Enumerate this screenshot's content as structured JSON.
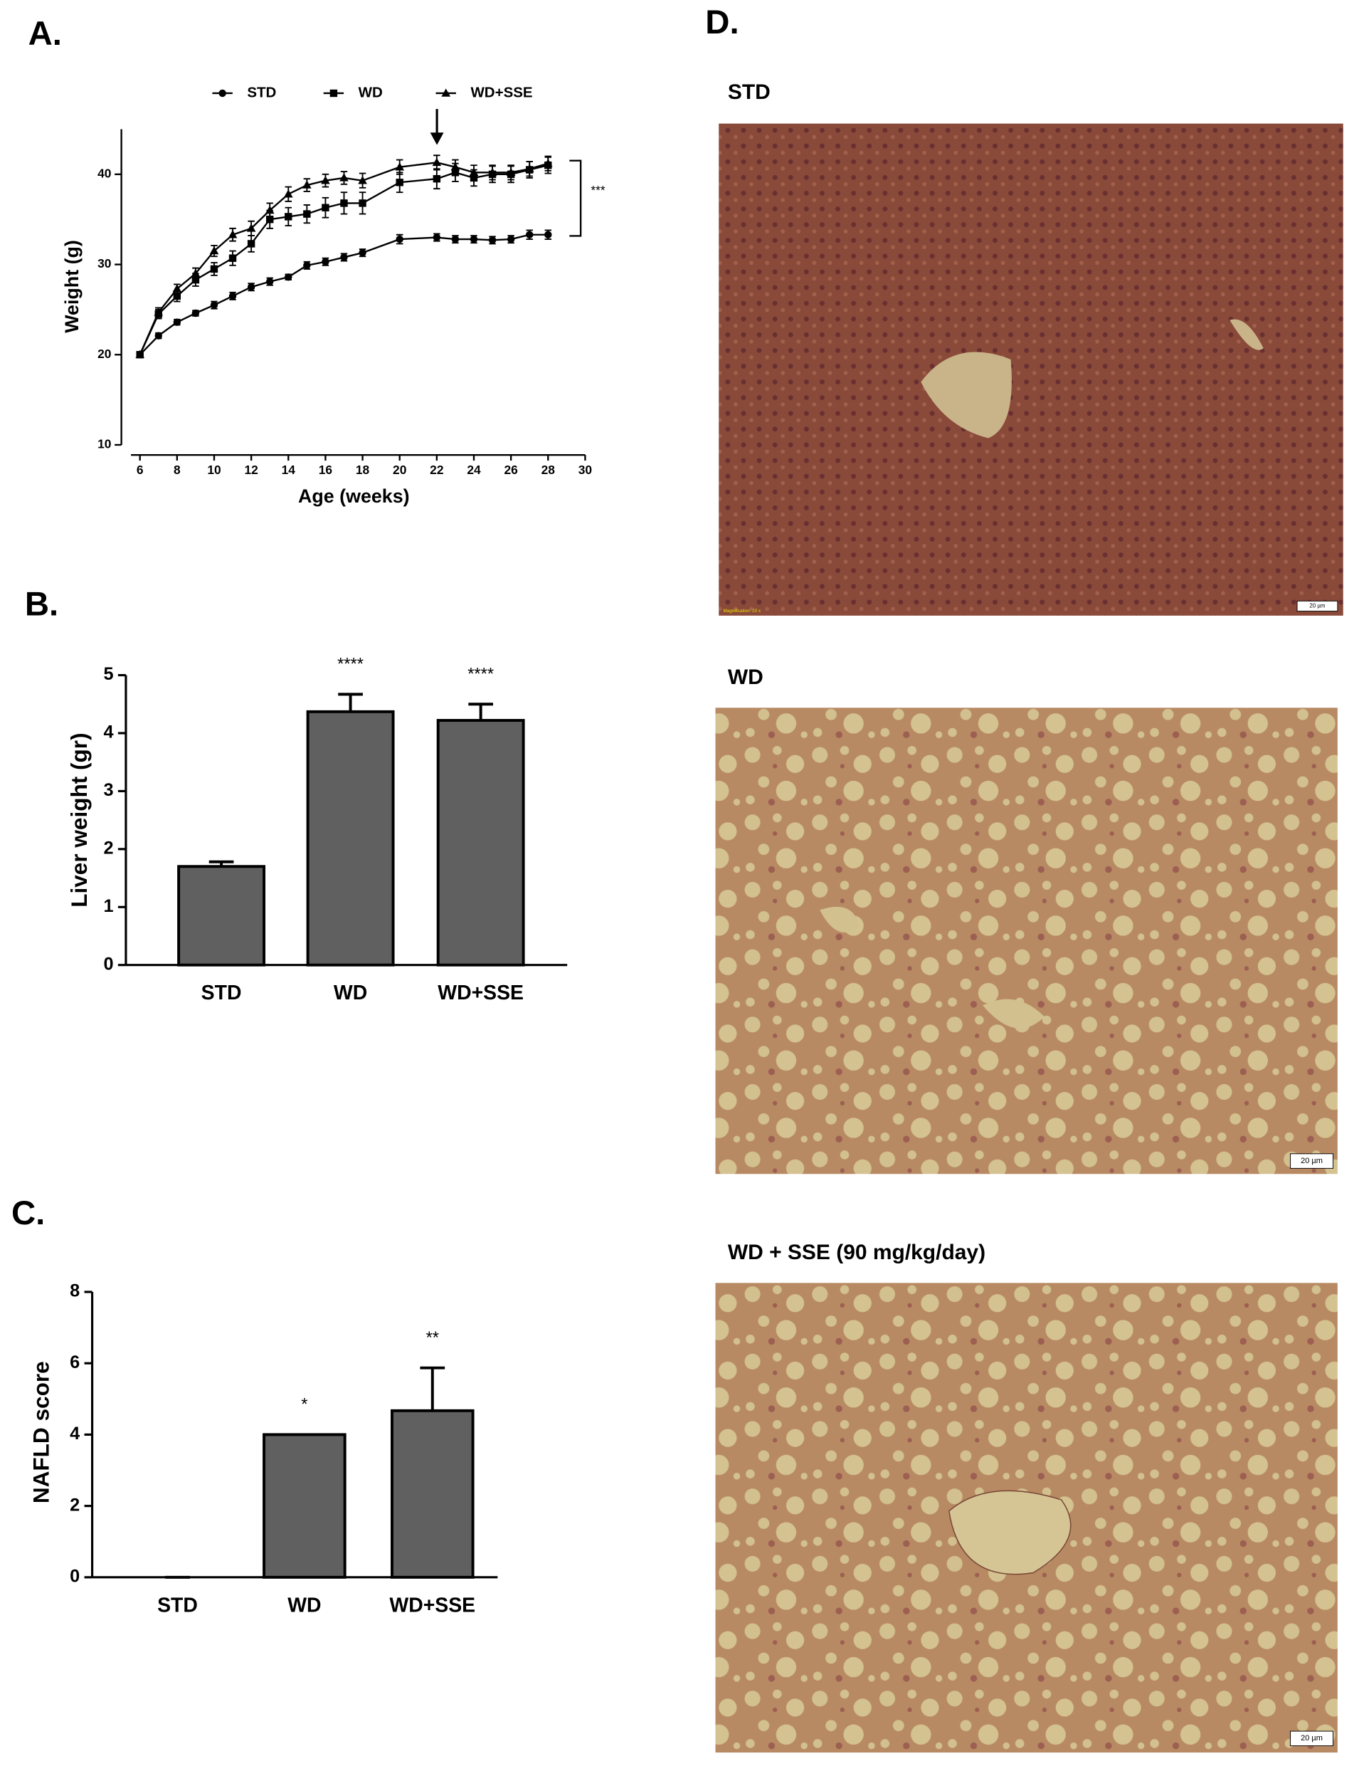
{
  "chart_data": [
    {
      "type": "line",
      "panel_label": "A.",
      "x_label": "Age (weeks)",
      "y_label": "Weight  (g)",
      "x": [
        6,
        7,
        8,
        9,
        10,
        11,
        12,
        13,
        14,
        15,
        16,
        17,
        18,
        20,
        22,
        23,
        24,
        25,
        26,
        27,
        28
      ],
      "xlim": [
        5,
        30
      ],
      "xticks": [
        6,
        8,
        10,
        12,
        14,
        16,
        18,
        20,
        22,
        24,
        26,
        28,
        30
      ],
      "ylim": [
        10,
        45
      ],
      "yticks": [
        10,
        20,
        30,
        40
      ],
      "bracket_annotation": "***",
      "series": [
        {
          "name": "STD",
          "color": "#000000",
          "marker": "circle",
          "values": [
            20,
            22.1,
            23.6,
            24.6,
            25.5,
            26.5,
            27.5,
            28.1,
            28.6,
            29.9,
            30.3,
            30.8,
            31.3,
            32.8,
            33.0,
            32.8,
            32.8,
            32.7,
            32.8,
            33.3,
            33.3
          ],
          "errors": [
            0.3,
            0.3,
            0.3,
            0.3,
            0.4,
            0.4,
            0.4,
            0.4,
            0.3,
            0.4,
            0.4,
            0.4,
            0.4,
            0.5,
            0.4,
            0.4,
            0.4,
            0.4,
            0.4,
            0.5,
            0.5
          ]
        },
        {
          "name": "WD",
          "color": "#000000",
          "marker": "square",
          "values": [
            20,
            24.5,
            26.5,
            28.3,
            29.5,
            30.7,
            32.3,
            35.0,
            35.3,
            35.6,
            36.3,
            36.8,
            36.8,
            39.1,
            39.5,
            40.2,
            39.6,
            40.0,
            40.0,
            40.5,
            41.0
          ],
          "errors": [
            0.3,
            0.5,
            0.6,
            0.7,
            0.7,
            0.8,
            0.9,
            1.0,
            1.0,
            1.0,
            1.1,
            1.2,
            1.2,
            1.1,
            1.1,
            1.0,
            0.9,
            0.9,
            0.9,
            0.9,
            0.9
          ]
        },
        {
          "name": "WD+SSE",
          "color": "#000000",
          "marker": "triangle",
          "values": [
            20,
            24.7,
            27.3,
            29.0,
            31.5,
            33.3,
            34.0,
            36.0,
            37.8,
            38.8,
            39.3,
            39.6,
            39.3,
            40.8,
            41.3,
            40.8,
            40.2,
            40.2,
            40.2,
            40.6,
            41.2
          ],
          "errors": [
            0.3,
            0.5,
            0.5,
            0.6,
            0.6,
            0.7,
            0.8,
            0.8,
            0.8,
            0.7,
            0.7,
            0.7,
            0.8,
            0.8,
            0.8,
            0.8,
            0.8,
            0.8,
            0.8,
            0.8,
            0.8
          ]
        }
      ]
    },
    {
      "type": "bar",
      "panel_label": "B.",
      "y_label": "Liver weight (gr)",
      "categories": [
        "STD",
        "WD",
        "WD+SSE"
      ],
      "values": [
        1.7,
        4.37,
        4.22
      ],
      "errors": [
        0.08,
        0.3,
        0.28
      ],
      "annotations": [
        null,
        "****",
        "****"
      ],
      "color": "#606060",
      "ylim": [
        0,
        5
      ],
      "yticks": [
        0,
        1,
        2,
        3,
        4,
        5
      ]
    },
    {
      "type": "bar",
      "panel_label": "C.",
      "y_label": "NAFLD score",
      "categories": [
        "STD",
        "WD",
        "WD+SSE"
      ],
      "values": [
        0,
        4.0,
        4.67
      ],
      "errors": [
        0,
        0,
        1.2
      ],
      "annotations": [
        null,
        "*",
        "**"
      ],
      "color": "#606060",
      "ylim": [
        0,
        8
      ],
      "yticks": [
        0,
        2,
        4,
        6,
        8
      ]
    }
  ],
  "micrographs": {
    "panel_label": "D.",
    "items": [
      {
        "title": "STD",
        "scale_bar": "20 µm",
        "magnification": "Magnification: 20 x"
      },
      {
        "title": "WD",
        "scale_bar": "20 µm"
      },
      {
        "title": "WD + SSE (90 mg/kg/day)",
        "scale_bar": "20 µm"
      }
    ]
  }
}
